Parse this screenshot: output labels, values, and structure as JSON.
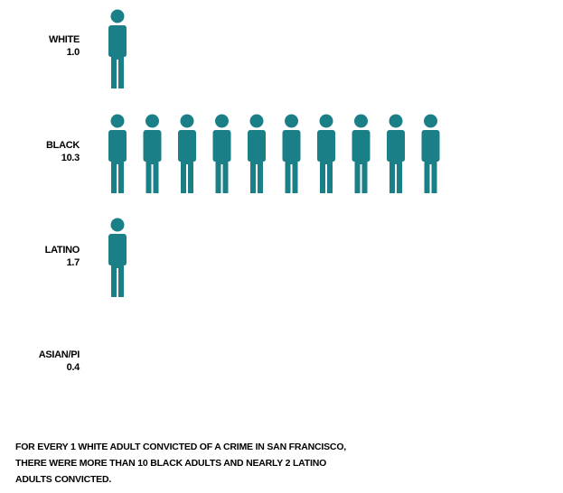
{
  "chart_data": {
    "type": "bar",
    "chart_style": "pictogram",
    "icon": "person-icon",
    "color": "#1b7f87",
    "categories": [
      "WHITE",
      "BLACK",
      "LATINO",
      "ASIAN/PI"
    ],
    "values": [
      1.0,
      10.3,
      1.7,
      0.4
    ],
    "value_labels": [
      "1.0",
      "10.3",
      "1.7",
      "0.4"
    ],
    "annotation": "FOR EVERY 1 WHITE ADULT CONVICTED  OF A CRIME IN SAN FRANCISCO,\nTHERE WERE MORE THAN 10 BLACK ADULTS AND NEARLY 2 LATINO\nADULTS CONVICTED."
  }
}
